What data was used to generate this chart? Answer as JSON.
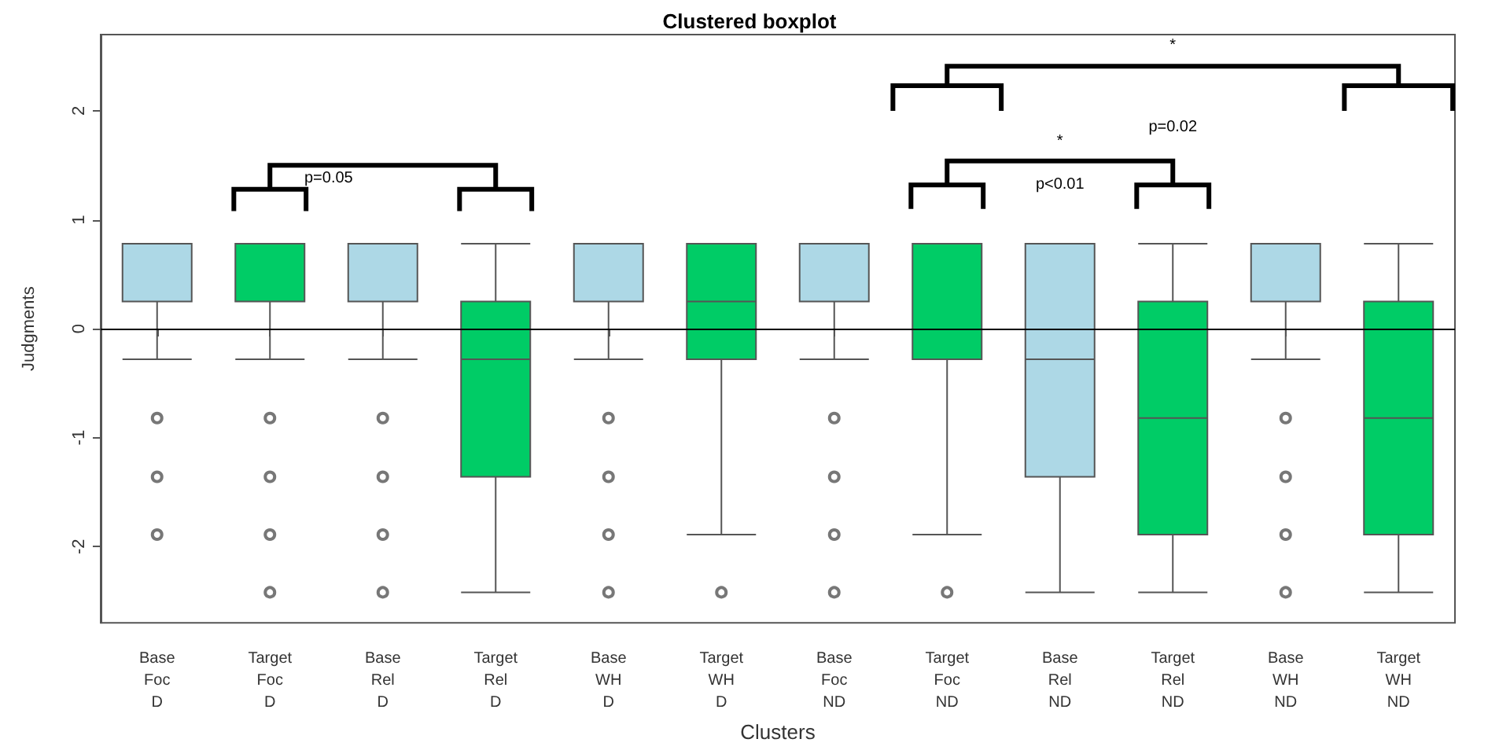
{
  "chart_data": {
    "type": "box",
    "title": "Clustered boxplot",
    "xlabel": "Clusters",
    "ylabel": "Judgments",
    "categories": [
      "Base Foc D",
      "Target Foc D",
      "Base Rel D",
      "Target Rel D",
      "Base WH D",
      "Target WH D",
      "Base Foc ND",
      "Target Foc ND",
      "Base Rel ND",
      "Target Rel ND",
      "Base WH ND",
      "Target WH ND"
    ],
    "colors": [
      "#add8e6",
      "#00cc66",
      "#add8e6",
      "#00cc66",
      "#add8e6",
      "#00cc66",
      "#add8e6",
      "#00cc66",
      "#add8e6",
      "#00cc66",
      "#add8e6",
      "#00cc66"
    ],
    "boxes": [
      {
        "low": -0.28,
        "q1": 0.25,
        "median": 0.78,
        "q3": 0.78,
        "high": 0.78,
        "outliers": [
          -0.82,
          -1.36,
          -1.89
        ]
      },
      {
        "low": -0.28,
        "q1": 0.25,
        "median": 0.78,
        "q3": 0.78,
        "high": 0.78,
        "outliers": [
          -0.82,
          -1.36,
          -1.89,
          -2.42
        ]
      },
      {
        "low": -0.28,
        "q1": 0.25,
        "median": 0.78,
        "q3": 0.78,
        "high": 0.78,
        "outliers": [
          -0.82,
          -1.36,
          -1.89,
          -2.42
        ]
      },
      {
        "low": -2.42,
        "q1": -1.36,
        "median": -0.28,
        "q3": 0.25,
        "high": 0.78
      },
      {
        "low": -0.28,
        "q1": 0.25,
        "median": 0.78,
        "q3": 0.78,
        "high": 0.78,
        "outliers": [
          -0.82,
          -1.36,
          -1.89,
          -2.42
        ]
      },
      {
        "low": -1.89,
        "q1": -0.28,
        "median": 0.25,
        "q3": 0.78,
        "high": 0.78,
        "outliers": [
          -2.42
        ]
      },
      {
        "low": -0.28,
        "q1": 0.25,
        "median": 0.78,
        "q3": 0.78,
        "high": 0.78,
        "outliers": [
          -0.82,
          -1.36,
          -1.89,
          -2.42
        ]
      },
      {
        "low": -1.89,
        "q1": -0.28,
        "median": 0.78,
        "q3": 0.78,
        "high": 0.78,
        "outliers": [
          -2.42
        ]
      },
      {
        "low": -2.42,
        "q1": -1.36,
        "median": -0.28,
        "q3": 0.78,
        "high": 0.78
      },
      {
        "low": -2.42,
        "q1": -1.89,
        "median": -0.82,
        "q3": 0.25,
        "high": 0.78
      },
      {
        "low": -0.28,
        "q1": 0.25,
        "median": 0.78,
        "q3": 0.78,
        "high": 0.78,
        "outliers": [
          -0.82,
          -1.36,
          -1.89,
          -2.42
        ]
      },
      {
        "low": -2.42,
        "q1": -1.89,
        "median": -0.82,
        "q3": 0.25,
        "high": 0.78
      }
    ],
    "ylim": [
      -2.7,
      2.7
    ],
    "yticks": [
      -2,
      -1,
      0,
      1,
      2
    ],
    "grid": false,
    "marker": "circle",
    "ref_lines": [
      {
        "axis": "y",
        "value": 0,
        "color": "#000000"
      }
    ],
    "annotations": [
      "p=0.05",
      "*",
      "p<0.01",
      "*",
      "p=0.02"
    ]
  }
}
